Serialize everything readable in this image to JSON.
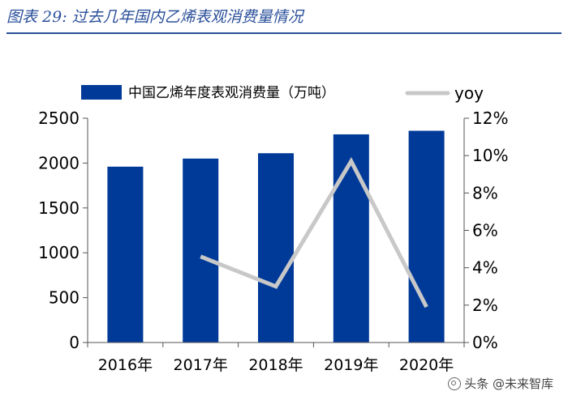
{
  "header": {
    "title": "图表 29:  过去几年国内乙烯表观消费量情况"
  },
  "watermark": {
    "text": "头条 @未来智库"
  },
  "chart_data": {
    "type": "bar",
    "title": "",
    "categories": [
      "2016年",
      "2017年",
      "2018年",
      "2019年",
      "2020年"
    ],
    "series": [
      {
        "name": "中国乙烯年度表观消费量（万吨）",
        "type": "bar",
        "axis": "left",
        "color": "#003a99",
        "values": [
          1960,
          2050,
          2110,
          2320,
          2360
        ]
      },
      {
        "name": "yoy",
        "type": "line",
        "axis": "right",
        "color": "#c8c8c8",
        "values": [
          null,
          4.6,
          3.0,
          9.7,
          1.9
        ]
      }
    ],
    "left_axis": {
      "ylim": [
        0,
        2500
      ],
      "ticks": [
        "0",
        "500",
        "1000",
        "1500",
        "2000",
        "2500"
      ]
    },
    "right_axis": {
      "ylim": [
        0,
        12
      ],
      "ticks": [
        "0%",
        "2%",
        "4%",
        "6%",
        "8%",
        "10%",
        "12%"
      ]
    },
    "legend": "top",
    "grid": false
  }
}
